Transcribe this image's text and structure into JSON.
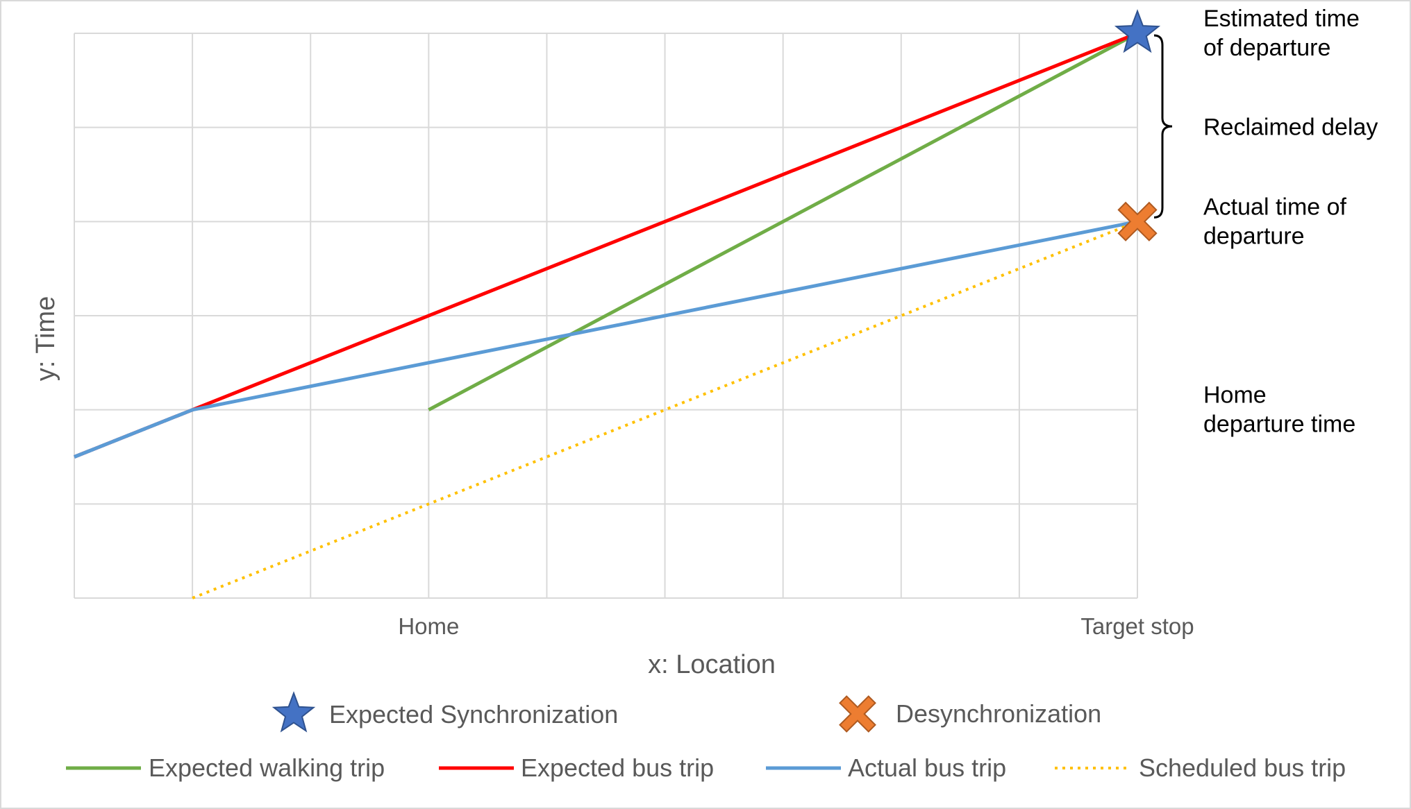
{
  "chart_data": {
    "type": "line",
    "xlabel": "x: Location",
    "ylabel": "y: Time",
    "x_categories": [
      "Home",
      "Target stop"
    ],
    "xlim": [
      0,
      9
    ],
    "ylim": [
      0,
      6
    ],
    "grid": true,
    "series": [
      {
        "name": "Expected walking trip",
        "color": "#70AD47",
        "style": "solid",
        "points": [
          [
            3,
            2
          ],
          [
            9,
            6
          ]
        ]
      },
      {
        "name": "Expected bus trip",
        "color": "#FF0000",
        "style": "solid",
        "points": [
          [
            0,
            1.5
          ],
          [
            1,
            2
          ],
          [
            9,
            6
          ]
        ]
      },
      {
        "name": "Actual bus trip",
        "color": "#5B9BD5",
        "style": "solid",
        "points": [
          [
            0,
            1.5
          ],
          [
            1,
            2
          ],
          [
            9,
            4
          ]
        ]
      },
      {
        "name": "Scheduled bus trip",
        "color": "#FFC000",
        "style": "dotted",
        "points": [
          [
            1,
            0
          ],
          [
            9,
            4
          ]
        ]
      }
    ],
    "markers": [
      {
        "name": "Expected Synchronization",
        "shape": "star",
        "color": "#4472C4",
        "x": 9,
        "y": 6
      },
      {
        "name": "Desynchronization",
        "shape": "cross",
        "color": "#ED7D31",
        "x": 9,
        "y": 4
      }
    ],
    "annotations": [
      {
        "lines": [
          "Estimated time",
          "of departure"
        ],
        "y": 6
      },
      {
        "lines": [
          "Reclaimed delay"
        ],
        "y": 5
      },
      {
        "lines": [
          "Actual time of",
          "departure"
        ],
        "y": 4
      },
      {
        "lines": [
          "Home",
          "departure time"
        ],
        "y": 2
      }
    ],
    "legend_position": "bottom"
  }
}
